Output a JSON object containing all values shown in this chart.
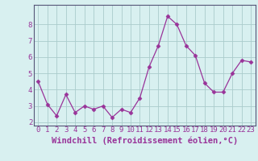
{
  "x": [
    0,
    1,
    2,
    3,
    4,
    5,
    6,
    7,
    8,
    9,
    10,
    11,
    12,
    13,
    14,
    15,
    16,
    17,
    18,
    19,
    20,
    21,
    22,
    23
  ],
  "y": [
    4.5,
    3.1,
    2.4,
    3.7,
    2.6,
    3.0,
    2.8,
    3.0,
    2.3,
    2.8,
    2.6,
    3.5,
    5.4,
    6.7,
    8.5,
    8.0,
    6.7,
    6.1,
    4.4,
    3.85,
    3.85,
    5.0,
    5.8,
    5.7
  ],
  "line_color": "#993399",
  "marker": "D",
  "marker_size": 2.5,
  "bg_color": "#d8f0f0",
  "grid_color": "#aacccc",
  "axis_color": "#555577",
  "tick_color": "#993399",
  "xlabel": "Windchill (Refroidissement éolien,°C)",
  "ylabel": "",
  "title": "",
  "xlim": [
    -0.5,
    23.5
  ],
  "ylim": [
    1.8,
    9.2
  ],
  "yticks": [
    2,
    3,
    4,
    5,
    6,
    7,
    8
  ],
  "xticks": [
    0,
    1,
    2,
    3,
    4,
    5,
    6,
    7,
    8,
    9,
    10,
    11,
    12,
    13,
    14,
    15,
    16,
    17,
    18,
    19,
    20,
    21,
    22,
    23
  ],
  "font_size": 6.5,
  "xlabel_fontsize": 7.5
}
